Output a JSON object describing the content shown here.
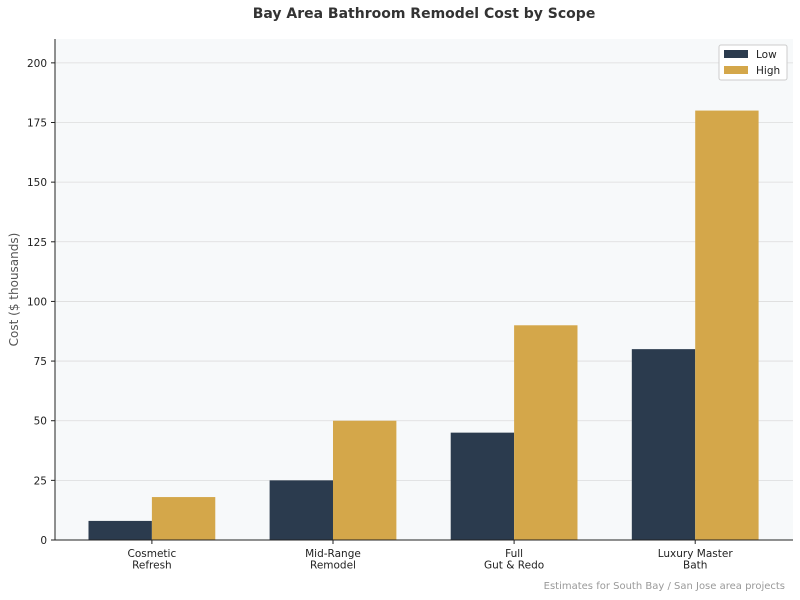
{
  "chart_data": {
    "type": "bar",
    "title": "Bay Area Bathroom Remodel Cost by Scope",
    "categories": [
      [
        "Cosmetic",
        "Refresh"
      ],
      [
        "Mid-Range",
        "Remodel"
      ],
      [
        "Full",
        "Gut & Redo"
      ],
      [
        "Luxury Master",
        "Bath"
      ]
    ],
    "series": [
      {
        "name": "Low",
        "values": [
          8,
          25,
          45,
          80
        ],
        "color": "#2b3b4e"
      },
      {
        "name": "High",
        "values": [
          18,
          50,
          90,
          180
        ],
        "color": "#d4a74a"
      }
    ],
    "xlabel": "",
    "ylabel": "Cost ($ thousands)",
    "ylim": [
      0,
      210
    ],
    "yticks": [
      0,
      25,
      50,
      75,
      100,
      125,
      150,
      175,
      200
    ],
    "grid": "horizontal",
    "legend": "top-right",
    "background": "#f7f9fa",
    "annotation": "Estimates for South Bay / San Jose area projects"
  }
}
